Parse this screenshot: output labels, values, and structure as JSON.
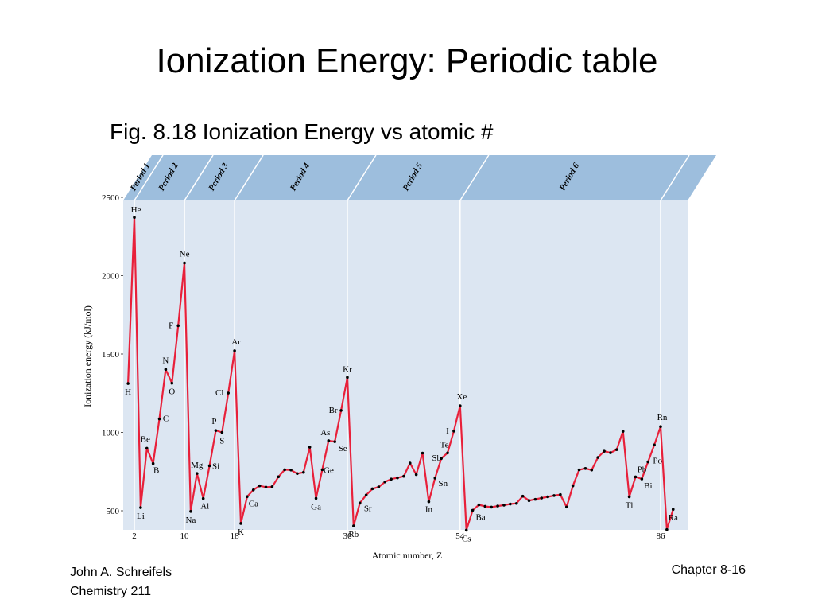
{
  "slide": {
    "title": "Ionization Energy: Periodic table",
    "subtitle": "Fig. 8.18 Ionization Energy vs atomic #"
  },
  "footer": {
    "author": "John A. Schreifels",
    "course": "Chemistry 211",
    "page": "Chapter 8-16"
  },
  "colors": {
    "plot_bg": "#dce6f2",
    "band": "#9dbedd",
    "line": "#e8203a",
    "marker": "#000000"
  },
  "chart_data": {
    "type": "line",
    "xlabel": "Atomic number, Z",
    "ylabel": "Ionization energy (kJ/mol)",
    "xlim": [
      0,
      88
    ],
    "ylim": [
      0,
      2500
    ],
    "xticks": [
      2,
      10,
      18,
      36,
      54,
      86
    ],
    "yticks": [
      500,
      1000,
      1500,
      2000,
      2500
    ],
    "periods": [
      {
        "label": "Period 1",
        "start": 1,
        "end": 2
      },
      {
        "label": "Period 2",
        "start": 2,
        "end": 10
      },
      {
        "label": "Period 3",
        "start": 10,
        "end": 18
      },
      {
        "label": "Period 4",
        "start": 18,
        "end": 36
      },
      {
        "label": "Period 5",
        "start": 36,
        "end": 54
      },
      {
        "label": "Period 6",
        "start": 54,
        "end": 86
      }
    ],
    "series": [
      {
        "x": [
          1,
          2,
          3,
          4,
          5,
          6,
          7,
          8,
          9,
          10,
          11,
          12,
          13,
          14,
          15,
          16,
          17,
          18,
          19,
          20,
          21,
          22,
          23,
          24,
          25,
          26,
          27,
          28,
          29,
          30,
          31,
          32,
          33,
          34,
          35,
          36,
          37,
          38,
          39,
          40,
          41,
          42,
          43,
          44,
          45,
          46,
          47,
          48,
          49,
          50,
          51,
          52,
          53,
          54,
          55,
          56,
          57,
          58,
          59,
          60,
          61,
          62,
          63,
          64,
          65,
          66,
          67,
          68,
          69,
          70,
          71,
          72,
          73,
          74,
          75,
          76,
          77,
          78,
          79,
          80,
          81,
          82,
          83,
          84,
          85,
          86,
          87,
          88
        ],
        "values": [
          1312,
          2372,
          520,
          899,
          801,
          1086,
          1402,
          1314,
          1681,
          2081,
          496,
          738,
          578,
          787,
          1012,
          1000,
          1251,
          1521,
          419,
          590,
          633,
          659,
          651,
          653,
          717,
          762,
          760,
          737,
          745,
          906,
          579,
          762,
          947,
          941,
          1140,
          1351,
          403,
          549,
          600,
          640,
          652,
          684,
          702,
          710,
          720,
          804,
          731,
          868,
          558,
          709,
          834,
          869,
          1008,
          1170,
          376,
          503,
          538,
          528,
          523,
          530,
          536,
          543,
          547,
          593,
          565,
          573,
          581,
          589,
          597,
          603,
          524,
          659,
          761,
          770,
          760,
          840,
          880,
          870,
          890,
          1007,
          589,
          716,
          703,
          812,
          920,
          1037,
          380,
          509
        ]
      }
    ],
    "annotations": [
      {
        "text": "He",
        "z": 2
      },
      {
        "text": "H",
        "z": 1
      },
      {
        "text": "Li",
        "z": 3
      },
      {
        "text": "Be",
        "z": 4
      },
      {
        "text": "B",
        "z": 5
      },
      {
        "text": "C",
        "z": 6
      },
      {
        "text": "N",
        "z": 7
      },
      {
        "text": "O",
        "z": 8
      },
      {
        "text": "F",
        "z": 9
      },
      {
        "text": "Ne",
        "z": 10
      },
      {
        "text": "Na",
        "z": 11
      },
      {
        "text": "Mg",
        "z": 12
      },
      {
        "text": "Al",
        "z": 13
      },
      {
        "text": "Si",
        "z": 14
      },
      {
        "text": "P",
        "z": 15
      },
      {
        "text": "S",
        "z": 16
      },
      {
        "text": "Cl",
        "z": 17
      },
      {
        "text": "Ar",
        "z": 18
      },
      {
        "text": "K",
        "z": 19
      },
      {
        "text": "Ca",
        "z": 20
      },
      {
        "text": "Ga",
        "z": 31
      },
      {
        "text": "Ge",
        "z": 32
      },
      {
        "text": "As",
        "z": 33
      },
      {
        "text": "Se",
        "z": 34
      },
      {
        "text": "Br",
        "z": 35
      },
      {
        "text": "Kr",
        "z": 36
      },
      {
        "text": "Rb",
        "z": 37
      },
      {
        "text": "Sr",
        "z": 38
      },
      {
        "text": "In",
        "z": 49
      },
      {
        "text": "Sn",
        "z": 50
      },
      {
        "text": "Sb",
        "z": 51
      },
      {
        "text": "Te",
        "z": 52
      },
      {
        "text": "I",
        "z": 53
      },
      {
        "text": "Xe",
        "z": 54
      },
      {
        "text": "Cs",
        "z": 55
      },
      {
        "text": "Ba",
        "z": 56
      },
      {
        "text": "Tl",
        "z": 81
      },
      {
        "text": "Pb",
        "z": 82
      },
      {
        "text": "Bi",
        "z": 83
      },
      {
        "text": "Po",
        "z": 84
      },
      {
        "text": "Rn",
        "z": 86
      },
      {
        "text": "Ra",
        "z": 88
      }
    ]
  }
}
